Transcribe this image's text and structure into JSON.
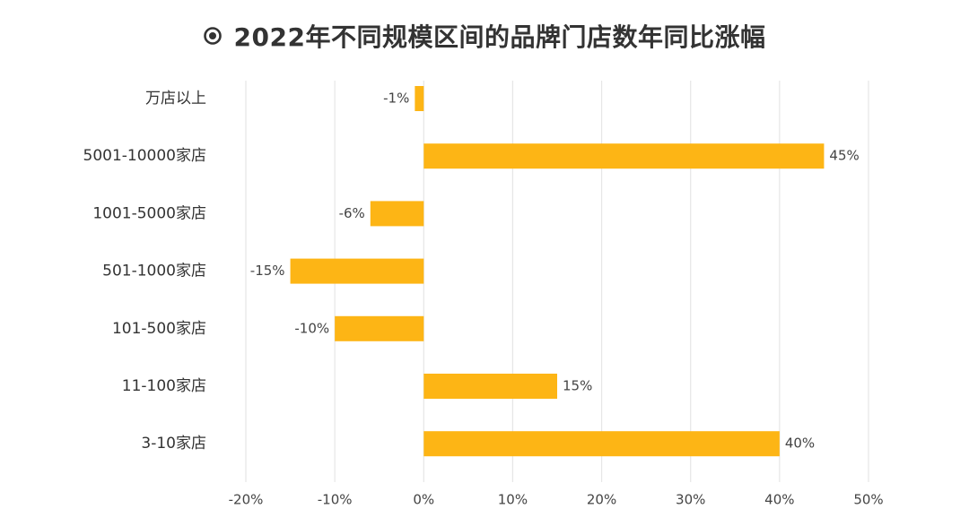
{
  "title": "2022年不同规模区间的品牌门店数年同比涨幅",
  "colors": {
    "bar": "#FDB515",
    "grid": "#E6E6E6",
    "text": "#333333"
  },
  "chart_data": {
    "type": "bar",
    "orientation": "horizontal",
    "categories": [
      "万店以上",
      "5001-10000家店",
      "1001-5000家店",
      "501-1000家店",
      "101-500家店",
      "11-100家店",
      "3-10家店"
    ],
    "values": [
      -1,
      45,
      -6,
      -15,
      -10,
      15,
      40
    ],
    "value_labels": [
      "-1%",
      "45%",
      "-6%",
      "-15%",
      "-10%",
      "15%",
      "40%"
    ],
    "xlim": [
      -20,
      50
    ],
    "xticks": [
      -20,
      -10,
      0,
      10,
      20,
      30,
      40,
      50
    ],
    "xtick_labels": [
      "-20%",
      "-10%",
      "0%",
      "10%",
      "20%",
      "30%",
      "40%",
      "50%"
    ],
    "grid": true,
    "legend": "none"
  }
}
